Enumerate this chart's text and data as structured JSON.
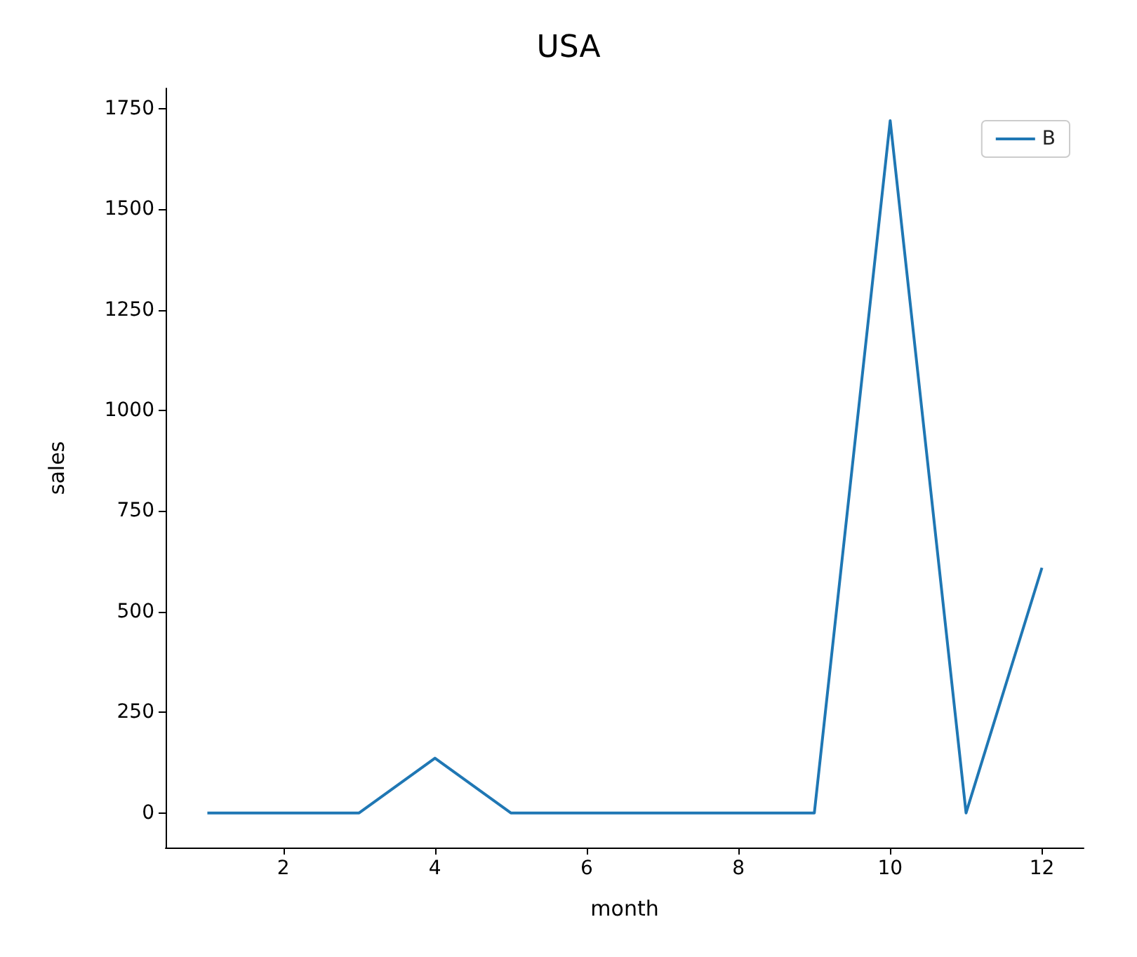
{
  "chart_data": {
    "type": "line",
    "title": "USA",
    "xlabel": "month",
    "ylabel": "sales",
    "x": [
      1,
      2,
      3,
      4,
      5,
      6,
      7,
      8,
      9,
      10,
      11,
      12
    ],
    "series": [
      {
        "name": "B",
        "color": "#1f77b4",
        "values": [
          0,
          0,
          0,
          136,
          0,
          0,
          0,
          0,
          0,
          1720,
          0,
          609
        ]
      }
    ],
    "xlim": [
      0.45,
      12.55
    ],
    "xticks": [
      2,
      4,
      6,
      8,
      10,
      12
    ],
    "ylim": [
      -86,
      1800
    ],
    "yticks": [
      0,
      250,
      500,
      750,
      1000,
      1250,
      1500,
      1750
    ],
    "grid": false,
    "legend": "top right"
  }
}
